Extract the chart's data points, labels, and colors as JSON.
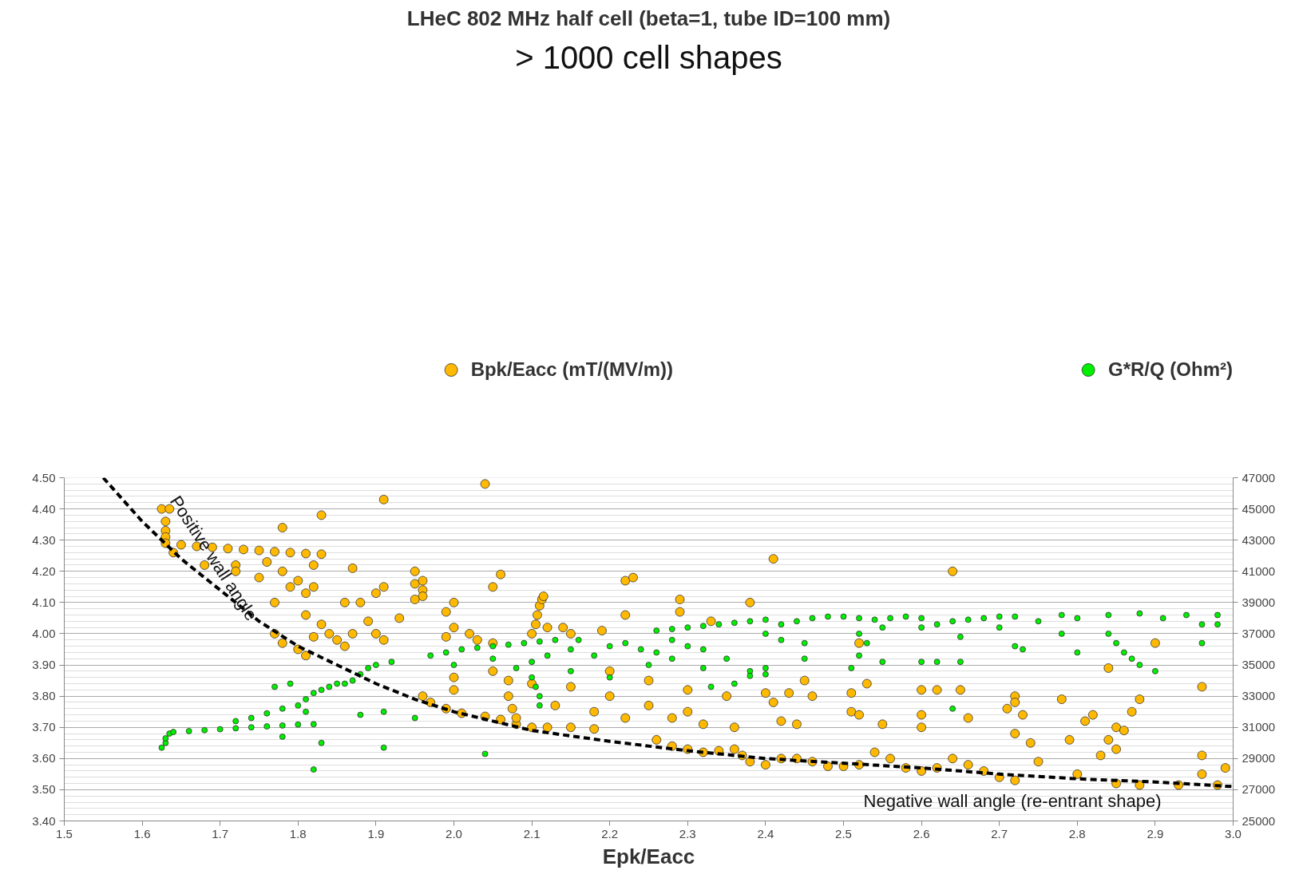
{
  "chart_data": {
    "type": "scatter",
    "title": "LHeC 802 MHz half cell (beta=1, tube ID=100 mm)",
    "subtitle": "> 1000 cell shapes",
    "xlabel": "Epk/Eacc",
    "xlim": [
      1.5,
      3.0
    ],
    "xticks": [
      1.5,
      1.6,
      1.7,
      1.8,
      1.9,
      {
        "value": 2.0,
        "label": "2.0"
      },
      2.1,
      2.2,
      2.3,
      2.4,
      2.5,
      2.6,
      2.7,
      2.8,
      2.9,
      {
        "value": 3.0,
        "label": "3.0"
      }
    ],
    "ylim": [
      3.4,
      4.5
    ],
    "yticks": [
      {
        "value": 3.4,
        "label": "3.40"
      },
      {
        "value": 3.5,
        "label": "3.50"
      },
      {
        "value": 3.6,
        "label": "3.60"
      },
      {
        "value": 3.7,
        "label": "3.70"
      },
      {
        "value": 3.8,
        "label": "3.80"
      },
      {
        "value": 3.9,
        "label": "3.90"
      },
      {
        "value": 4.0,
        "label": "4.00"
      },
      {
        "value": 4.1,
        "label": "4.10"
      },
      {
        "value": 4.2,
        "label": "4.20"
      },
      {
        "value": 4.3,
        "label": "4.30"
      },
      {
        "value": 4.4,
        "label": "4.40"
      },
      {
        "value": 4.5,
        "label": "4.50"
      }
    ],
    "y2lim": [
      25000,
      47000
    ],
    "y2ticks": [
      25000,
      27000,
      29000,
      31000,
      33000,
      35000,
      37000,
      39000,
      41000,
      43000,
      45000,
      47000
    ],
    "grid": "y",
    "legend": "top",
    "marker": "circle",
    "annotations": [
      "Positive wall angle",
      "Negative wall angle (re-entrant shape)"
    ],
    "series": [
      {
        "name": "Bpk/Eacc (mT/(MV/m))",
        "color": "#ffb900",
        "x": [
          1.625,
          1.635,
          1.63,
          1.63,
          1.63,
          1.63,
          1.65,
          1.67,
          1.69,
          1.71,
          1.73,
          1.75,
          1.77,
          1.79,
          1.81,
          1.83,
          1.64,
          1.68,
          1.72,
          1.72,
          1.76,
          1.75,
          1.78,
          1.79,
          1.8,
          1.81,
          1.82,
          1.82,
          1.78,
          1.83,
          1.91,
          2.04,
          1.87,
          1.77,
          1.81,
          1.77,
          1.78,
          1.8,
          1.81,
          1.82,
          1.83,
          1.84,
          1.85,
          1.86,
          1.87,
          1.86,
          1.88,
          1.89,
          1.9,
          1.91,
          1.9,
          1.91,
          1.93,
          1.95,
          1.95,
          1.96,
          1.96,
          1.96,
          1.95,
          1.99,
          2.0,
          2.06,
          2.05,
          2.0,
          2.02,
          2.03,
          2.05,
          1.99,
          2.1,
          2.105,
          2.107,
          2.11,
          2.113,
          2.115,
          2.12,
          2.14,
          2.15,
          2.19,
          2.22,
          2.22,
          2.23,
          2.29,
          2.29,
          2.38,
          2.41,
          2.64,
          2.33,
          1.96,
          1.97,
          1.99,
          2.01,
          2.04,
          2.06,
          2.08,
          2.1,
          2.12,
          2.15,
          2.18,
          2.07,
          2.07,
          2.075,
          2.08,
          2.0,
          2.05,
          2.1,
          2.15,
          2.2,
          2.25,
          2.3,
          2.35,
          2.4,
          2.2,
          2.25,
          2.3,
          2.18,
          2.13,
          2.28,
          2.32,
          2.36,
          2.42,
          2.22,
          2.0,
          2.26,
          2.28,
          2.3,
          2.32,
          2.34,
          2.36,
          2.37,
          2.38,
          2.4,
          2.42,
          2.44,
          2.46,
          2.48,
          2.5,
          2.52,
          2.54,
          2.56,
          2.58,
          2.6,
          2.62,
          2.64,
          2.66,
          2.68,
          2.7,
          2.72,
          2.75,
          2.8,
          2.85,
          2.88,
          2.93,
          2.98,
          2.96,
          2.99,
          2.96,
          2.72,
          2.72,
          2.73,
          2.71,
          2.72,
          2.74,
          2.78,
          2.82,
          2.81,
          2.84,
          2.85,
          2.85,
          2.86,
          2.87,
          2.88,
          2.84,
          2.83,
          2.9,
          2.96,
          2.79,
          2.66,
          2.65,
          2.62,
          2.6,
          2.6,
          2.53,
          2.51,
          2.51,
          2.52,
          2.55,
          2.6,
          2.46,
          2.45,
          2.44,
          2.52,
          2.41,
          2.43
        ],
        "values": [
          4.4,
          4.4,
          4.36,
          4.33,
          4.31,
          4.29,
          4.285,
          4.28,
          4.277,
          4.273,
          4.27,
          4.267,
          4.263,
          4.26,
          4.257,
          4.255,
          4.26,
          4.22,
          4.22,
          4.2,
          4.23,
          4.18,
          4.2,
          4.15,
          4.17,
          4.13,
          4.22,
          4.15,
          4.34,
          4.38,
          4.43,
          4.48,
          4.21,
          4.1,
          4.06,
          4.0,
          3.97,
          3.95,
          3.93,
          3.99,
          4.03,
          4.0,
          3.98,
          3.96,
          4.0,
          4.1,
          4.1,
          4.04,
          4.13,
          4.15,
          4.0,
          3.98,
          4.05,
          4.2,
          4.16,
          4.17,
          4.14,
          4.12,
          4.11,
          4.07,
          4.1,
          4.19,
          4.15,
          4.02,
          4.0,
          3.98,
          3.97,
          3.99,
          4.0,
          4.03,
          4.06,
          4.09,
          4.11,
          4.12,
          4.02,
          4.02,
          4.0,
          4.01,
          4.06,
          4.17,
          4.18,
          4.11,
          4.07,
          4.1,
          4.24,
          4.2,
          4.04,
          3.8,
          3.78,
          3.76,
          3.745,
          3.735,
          3.725,
          3.71,
          3.7,
          3.7,
          3.7,
          3.695,
          3.85,
          3.8,
          3.76,
          3.73,
          3.86,
          3.88,
          3.84,
          3.83,
          3.88,
          3.85,
          3.82,
          3.8,
          3.81,
          3.8,
          3.77,
          3.75,
          3.75,
          3.77,
          3.73,
          3.71,
          3.7,
          3.72,
          3.73,
          3.82,
          3.66,
          3.64,
          3.63,
          3.62,
          3.625,
          3.63,
          3.61,
          3.59,
          3.58,
          3.6,
          3.6,
          3.59,
          3.575,
          3.575,
          3.58,
          3.62,
          3.6,
          3.57,
          3.56,
          3.57,
          3.6,
          3.58,
          3.56,
          3.54,
          3.53,
          3.59,
          3.55,
          3.52,
          3.515,
          3.515,
          3.515,
          3.55,
          3.57,
          3.61,
          3.8,
          3.78,
          3.74,
          3.76,
          3.68,
          3.65,
          3.79,
          3.74,
          3.72,
          3.66,
          3.7,
          3.63,
          3.69,
          3.75,
          3.79,
          3.89,
          3.61,
          3.97,
          3.83,
          3.66,
          3.73,
          3.82,
          3.82,
          3.82,
          3.74,
          3.84,
          3.81,
          3.75,
          3.74,
          3.71,
          3.7,
          3.8,
          3.85,
          3.71,
          3.97,
          3.78,
          3.81
        ]
      },
      {
        "name": "G*R/Q (Ohm²)",
        "color": "#00ee00",
        "axis": "y2",
        "x": [
          1.625,
          1.63,
          1.63,
          1.635,
          1.64,
          1.66,
          1.68,
          1.7,
          1.72,
          1.74,
          1.76,
          1.78,
          1.8,
          1.82,
          1.72,
          1.74,
          1.76,
          1.78,
          1.8,
          1.81,
          1.77,
          1.79,
          1.81,
          1.82,
          1.83,
          1.84,
          1.85,
          1.86,
          1.87,
          1.88,
          1.89,
          1.9,
          1.92,
          1.78,
          1.83,
          1.82,
          1.91,
          2.04,
          1.88,
          1.91,
          1.95,
          1.97,
          1.99,
          2.01,
          2.03,
          2.05,
          2.07,
          2.09,
          2.11,
          2.13,
          2.16,
          2.1,
          2.105,
          2.11,
          2.11,
          2.0,
          2.05,
          2.08,
          2.12,
          2.15,
          2.18,
          2.2,
          2.22,
          2.24,
          2.26,
          2.28,
          2.3,
          2.32,
          2.25,
          2.28,
          2.32,
          2.35,
          2.38,
          2.4,
          2.36,
          2.33,
          2.2,
          2.15,
          2.1,
          2.26,
          2.28,
          2.3,
          2.32,
          2.34,
          2.36,
          2.38,
          2.4,
          2.42,
          2.44,
          2.46,
          2.48,
          2.5,
          2.52,
          2.54,
          2.56,
          2.58,
          2.6,
          2.62,
          2.64,
          2.66,
          2.68,
          2.7,
          2.72,
          2.75,
          2.78,
          2.8,
          2.84,
          2.88,
          2.91,
          2.94,
          2.98,
          2.98,
          2.96,
          2.4,
          2.42,
          2.45,
          2.52,
          2.53,
          2.55,
          2.6,
          2.65,
          2.7,
          2.72,
          2.73,
          2.78,
          2.8,
          2.84,
          2.85,
          2.86,
          2.87,
          2.88,
          2.9,
          2.96,
          2.45,
          2.55,
          2.52,
          2.62,
          2.65,
          2.6,
          2.64,
          2.51,
          2.38,
          2.4
        ],
        "values": [
          29700,
          30000,
          30300,
          30600,
          30700,
          30760,
          30820,
          30880,
          30940,
          31000,
          31060,
          31120,
          31180,
          31200,
          31400,
          31600,
          31900,
          32200,
          32400,
          32000,
          33600,
          33800,
          32800,
          33200,
          33400,
          33600,
          33800,
          33800,
          34000,
          34400,
          34800,
          35000,
          35200,
          30400,
          30000,
          28300,
          29700,
          29300,
          31800,
          32000,
          31600,
          35600,
          35800,
          36000,
          36100,
          36200,
          36300,
          36400,
          36500,
          36600,
          36600,
          34200,
          33600,
          33000,
          32400,
          35000,
          35400,
          34800,
          35600,
          36000,
          35600,
          36200,
          36400,
          36000,
          35800,
          36600,
          36200,
          36000,
          35000,
          35400,
          34800,
          35400,
          34600,
          34400,
          33800,
          33600,
          34200,
          34600,
          35200,
          37200,
          37300,
          37400,
          37500,
          37600,
          37700,
          37800,
          37900,
          37600,
          37800,
          38000,
          38100,
          38100,
          38000,
          37900,
          38000,
          38100,
          38000,
          37600,
          37800,
          37900,
          38000,
          38100,
          38100,
          37800,
          38200,
          38000,
          38200,
          38300,
          38000,
          38200,
          38200,
          37600,
          37600,
          37000,
          36600,
          36400,
          37000,
          36400,
          37400,
          37400,
          36800,
          37400,
          36200,
          36000,
          37000,
          35800,
          37000,
          36400,
          35800,
          35400,
          35000,
          34600,
          36400,
          35400,
          35200,
          35600,
          35200,
          35200,
          35200,
          32200,
          34800,
          34300,
          34800
        ]
      },
      {
        "type": "line",
        "color": "#000000",
        "line_style": "dashed",
        "marker": "none",
        "x": [
          1.55,
          1.6,
          1.65,
          1.7,
          1.75,
          1.8,
          1.85,
          1.9,
          1.95,
          2.0,
          2.1,
          2.2,
          2.3,
          2.4,
          2.5,
          2.6,
          2.7,
          2.8,
          2.9,
          3.0
        ],
        "values": [
          4.5,
          4.36,
          4.24,
          4.14,
          4.04,
          3.96,
          3.9,
          3.84,
          3.79,
          3.75,
          3.69,
          3.655,
          3.625,
          3.6,
          3.585,
          3.57,
          3.55,
          3.535,
          3.525,
          3.51
        ]
      }
    ]
  }
}
